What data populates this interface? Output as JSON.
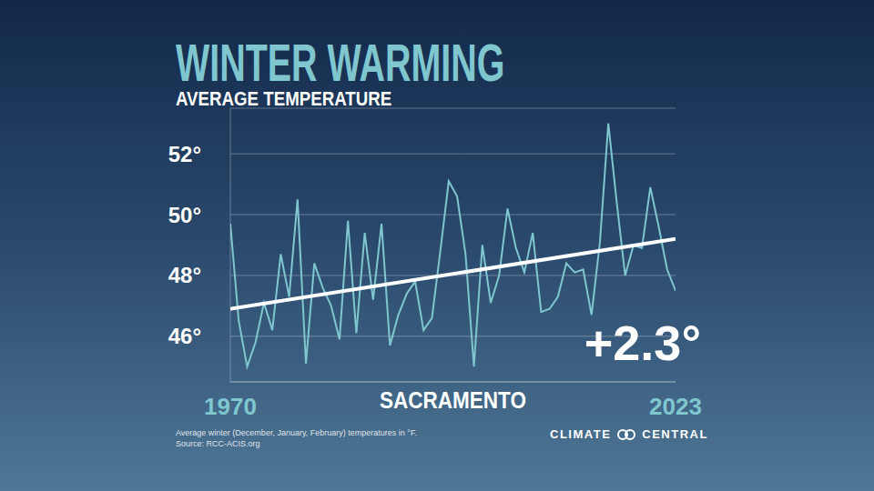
{
  "chart_data": {
    "type": "line",
    "title": "WINTER WARMING",
    "subtitle": "AVERAGE TEMPERATURE",
    "x": [
      1970,
      1971,
      1972,
      1973,
      1974,
      1975,
      1976,
      1977,
      1978,
      1979,
      1980,
      1981,
      1982,
      1983,
      1984,
      1985,
      1986,
      1987,
      1988,
      1989,
      1990,
      1991,
      1992,
      1993,
      1994,
      1995,
      1996,
      1997,
      1998,
      1999,
      2000,
      2001,
      2002,
      2003,
      2004,
      2005,
      2006,
      2007,
      2008,
      2009,
      2010,
      2011,
      2012,
      2013,
      2014,
      2015,
      2016,
      2017,
      2018,
      2019,
      2020,
      2021,
      2022,
      2023
    ],
    "values": [
      49.7,
      46.5,
      45.0,
      45.8,
      47.1,
      46.2,
      48.7,
      47.3,
      50.5,
      45.1,
      48.4,
      47.6,
      47.0,
      45.9,
      49.8,
      46.1,
      49.4,
      47.2,
      49.7,
      45.7,
      46.7,
      47.4,
      47.8,
      46.2,
      46.6,
      48.8,
      51.1,
      50.6,
      48.7,
      45.0,
      49.0,
      47.1,
      48.0,
      50.2,
      48.9,
      48.1,
      49.4,
      46.8,
      46.9,
      47.3,
      48.4,
      48.1,
      48.2,
      46.7,
      49.1,
      53.0,
      50.4,
      48.0,
      49.0,
      48.9,
      50.9,
      49.6,
      48.2,
      47.5
    ],
    "color": "#7fc6cf",
    "trend_line": {
      "x": [
        1970,
        2023
      ],
      "values": [
        46.9,
        49.2
      ],
      "color": "#ffffff"
    },
    "annotation": "+2.3°",
    "xlabel": "SACRAMENTO",
    "xlim": [
      1970,
      2023
    ],
    "xticks": [
      1970,
      2023
    ],
    "ylim": [
      44.5,
      53.5
    ],
    "yticks": [
      {
        "value": 46,
        "label": "46°"
      },
      {
        "value": 48,
        "label": "48°"
      },
      {
        "value": 50,
        "label": "50°"
      },
      {
        "value": 52,
        "label": "52°"
      }
    ],
    "grid": true,
    "footnote": [
      "Average winter (December, January, February) temperatures in °F.",
      "Source: RCC-ACIS.org"
    ],
    "logo": "CLIMATE CENTRAL"
  }
}
